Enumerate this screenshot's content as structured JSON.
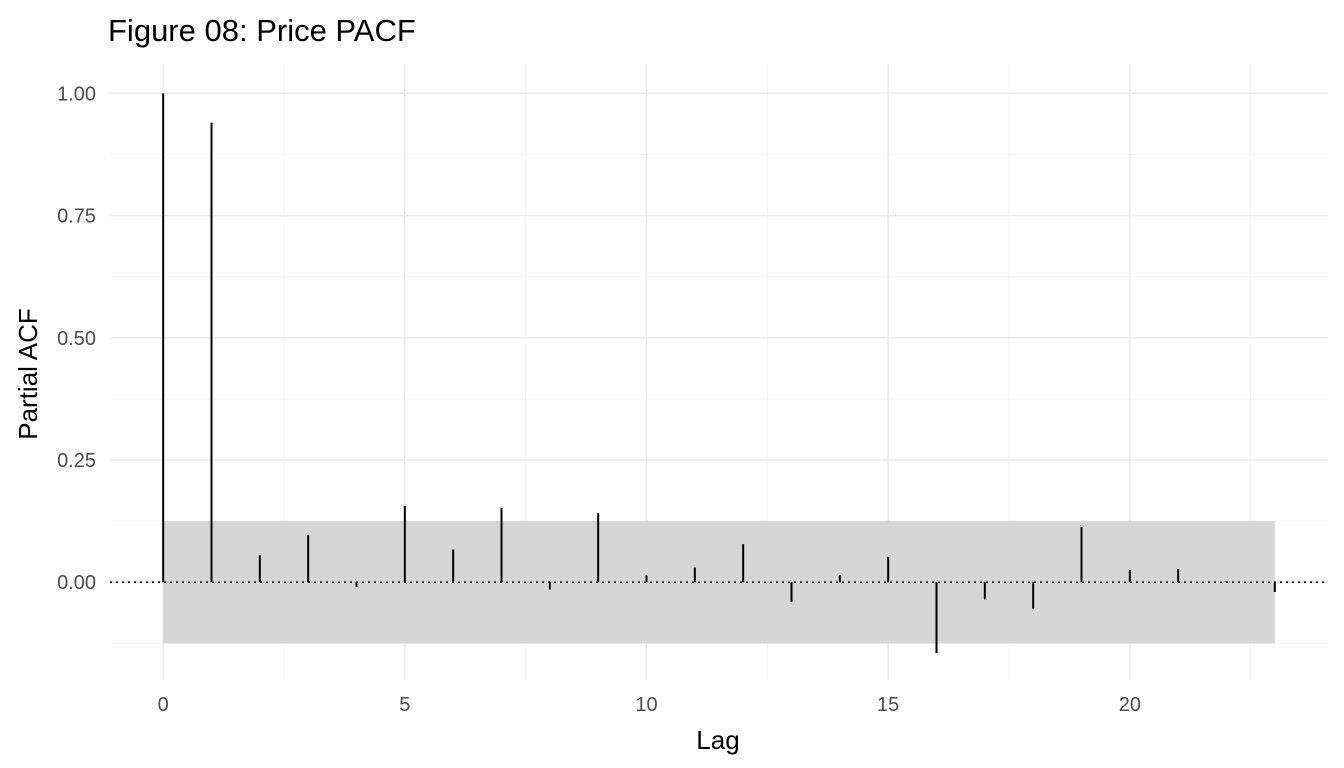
{
  "chart_data": {
    "type": "bar",
    "subtype": "pacf-lollipop",
    "title": "Figure 08: Price PACF",
    "xlabel": "Lag",
    "ylabel": "Partial ACF",
    "xlim": [
      -1.1,
      24.1
    ],
    "ylim": [
      -0.2,
      1.06
    ],
    "x_major_ticks": [
      0,
      5,
      10,
      15,
      20
    ],
    "x_minor_ticks": [
      2.5,
      7.5,
      12.5,
      17.5,
      22.5
    ],
    "x_tick_labels": [
      "0",
      "5",
      "10",
      "15",
      "20"
    ],
    "y_major_ticks": [
      0,
      0.25,
      0.5,
      0.75,
      1.0
    ],
    "y_minor_ticks": [
      -0.125,
      0.125,
      0.375,
      0.625,
      0.875
    ],
    "y_tick_labels": [
      "0.00",
      "0.25",
      "0.50",
      "0.75",
      "1.00"
    ],
    "confidence_band": {
      "lower": -0.125,
      "upper": 0.125,
      "x_from": 0,
      "x_to": 23
    },
    "zero_line": 0,
    "grid": true,
    "lags": [
      0,
      1,
      2,
      3,
      4,
      5,
      6,
      7,
      8,
      9,
      10,
      11,
      12,
      13,
      14,
      15,
      16,
      17,
      18,
      19,
      20,
      21,
      22,
      23
    ],
    "values": [
      1.0,
      0.94,
      0.055,
      0.097,
      -0.01,
      0.156,
      0.067,
      0.152,
      -0.015,
      0.141,
      0.015,
      0.03,
      0.078,
      -0.04,
      0.015,
      0.052,
      -0.145,
      -0.035,
      -0.055,
      0.113,
      0.025,
      0.027,
      0.002,
      -0.02
    ],
    "colors": {
      "bar": "#000000",
      "band": "#d6d6d6",
      "grid_major": "#ebebeb",
      "grid_minor": "#f3f3f3",
      "tick_text": "#4d4d4d"
    }
  }
}
